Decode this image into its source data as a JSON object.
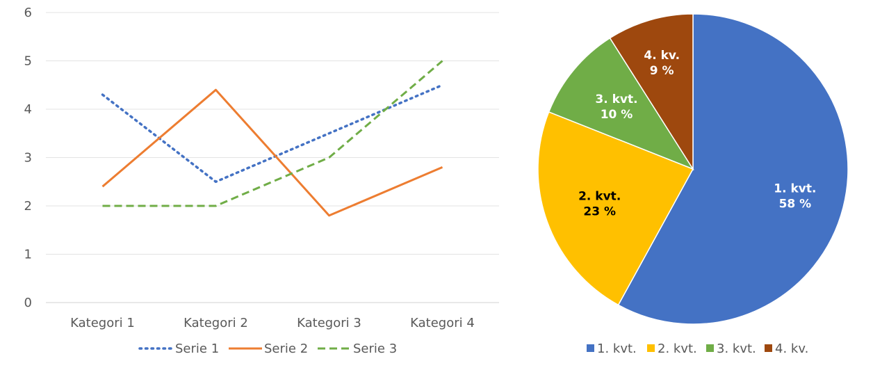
{
  "chart_data": [
    {
      "type": "line",
      "categories": [
        "Kategori 1",
        "Kategori 2",
        "Kategori 3",
        "Kategori 4"
      ],
      "series": [
        {
          "name": "Serie 1",
          "values": [
            4.3,
            2.5,
            3.5,
            4.5
          ],
          "color": "#4472C4",
          "dash": "dotted"
        },
        {
          "name": "Serie 2",
          "values": [
            2.4,
            4.4,
            1.8,
            2.8
          ],
          "color": "#ED7D31",
          "dash": "solid"
        },
        {
          "name": "Serie 3",
          "values": [
            2.0,
            2.0,
            3.0,
            5.0
          ],
          "color": "#70AD47",
          "dash": "dashed"
        }
      ],
      "ylim": [
        0,
        6
      ],
      "yticks": [
        "0",
        "1",
        "2",
        "3",
        "4",
        "5",
        "6"
      ],
      "grid": true,
      "legend": "bottom",
      "title": "",
      "xlabel": "",
      "ylabel": ""
    },
    {
      "type": "pie",
      "slices": [
        {
          "name": "1. kvt.",
          "value": 58,
          "label": [
            "1. kvt.",
            "58 %"
          ],
          "color": "#4472C4",
          "text_color": "#FFFFFF"
        },
        {
          "name": "2. kvt.",
          "value": 23,
          "label": [
            "2. kvt.",
            "23 %"
          ],
          "color": "#FFC000",
          "text_color": "#000000"
        },
        {
          "name": "3. kvt.",
          "value": 10,
          "label": [
            "3. kvt.",
            "10 %"
          ],
          "color": "#70AD47",
          "text_color": "#FFFFFF"
        },
        {
          "name": "4. kv.",
          "value": 9,
          "label": [
            "4. kv.",
            "9 %"
          ],
          "color": "#9E480E",
          "text_color": "#FFFFFF"
        }
      ],
      "legend": "bottom",
      "title": ""
    }
  ]
}
